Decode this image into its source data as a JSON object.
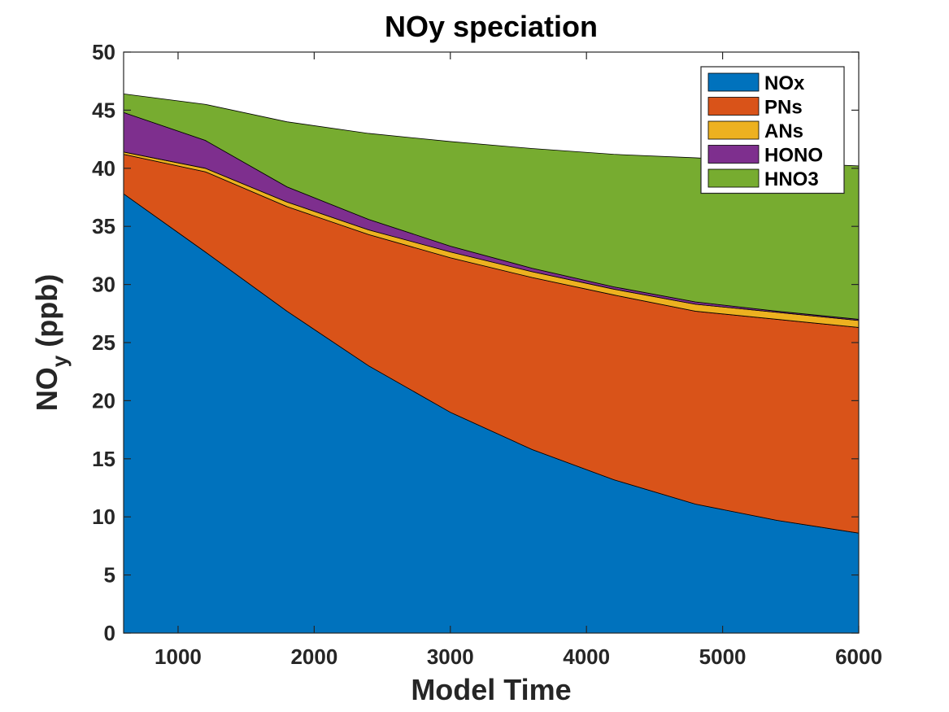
{
  "chart_data": {
    "type": "area",
    "title": "NOy speciation",
    "xlabel": "Model Time",
    "ylabel": {
      "main": "NO",
      "sub": "y",
      "suffix": " (ppb)"
    },
    "xlim": [
      600,
      6000
    ],
    "ylim": [
      0,
      50
    ],
    "xticks": [
      1000,
      2000,
      3000,
      4000,
      5000,
      6000
    ],
    "yticks": [
      0,
      5,
      10,
      15,
      20,
      25,
      30,
      35,
      40,
      45,
      50
    ],
    "stacked": true,
    "legend_position": "top-right",
    "x": [
      600,
      1200,
      1800,
      2400,
      3000,
      3600,
      4200,
      4800,
      5400,
      6000
    ],
    "series": [
      {
        "name": "NOx",
        "color": "#0072BD",
        "values": [
          37.8,
          32.8,
          27.7,
          23.0,
          19.0,
          15.8,
          13.2,
          11.1,
          9.7,
          8.6
        ]
      },
      {
        "name": "PNs",
        "color": "#D95319",
        "values": [
          3.4,
          6.9,
          9.0,
          11.3,
          13.3,
          14.8,
          15.9,
          16.6,
          17.3,
          17.7
        ]
      },
      {
        "name": "ANs",
        "color": "#EDB120",
        "values": [
          0.2,
          0.3,
          0.4,
          0.4,
          0.5,
          0.5,
          0.5,
          0.6,
          0.6,
          0.6
        ]
      },
      {
        "name": "HONO",
        "color": "#7E2F8E",
        "values": [
          3.4,
          2.4,
          1.3,
          0.9,
          0.5,
          0.3,
          0.2,
          0.2,
          0.1,
          0.1
        ]
      },
      {
        "name": "HNO3",
        "color": "#77AC30",
        "values": [
          1.6,
          3.1,
          5.6,
          7.4,
          9.0,
          10.3,
          11.4,
          12.4,
          12.8,
          13.2
        ]
      }
    ]
  }
}
